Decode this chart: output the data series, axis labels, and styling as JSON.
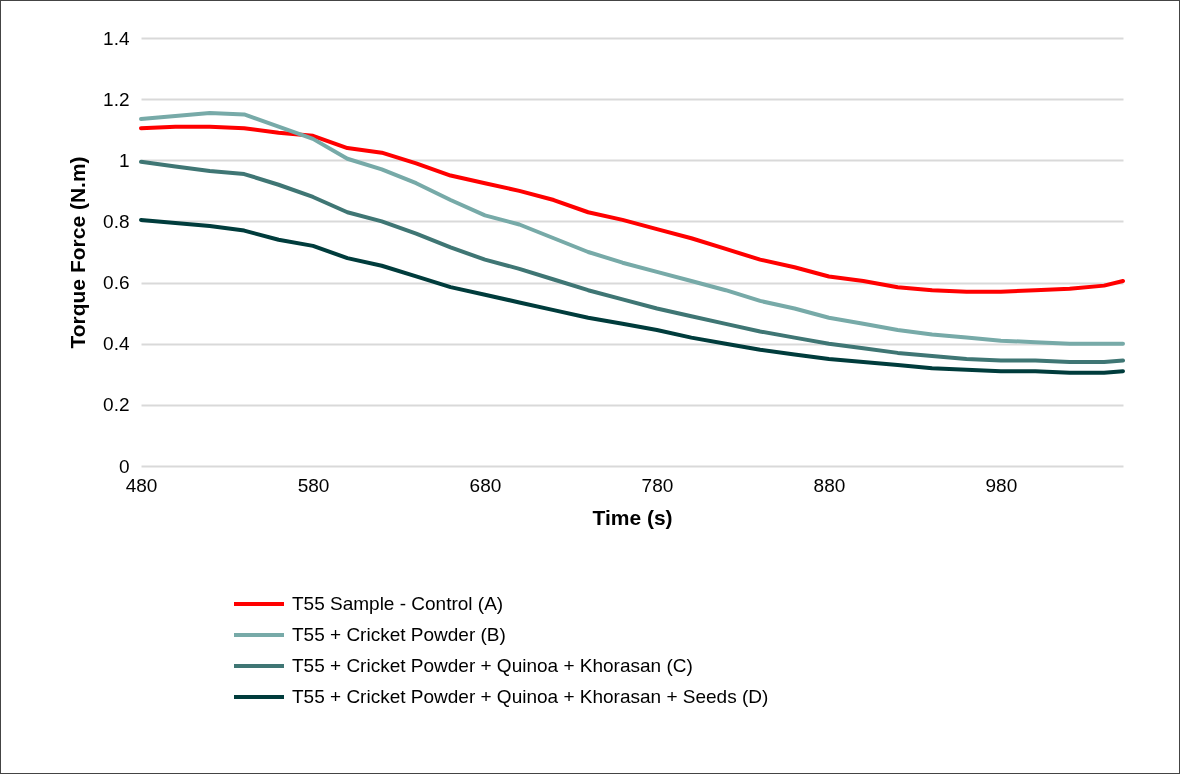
{
  "chart_data": {
    "type": "line",
    "xlabel": "Time (s)",
    "ylabel": "Torque Force (N.m)",
    "x": [
      480,
      500,
      520,
      540,
      560,
      580,
      600,
      620,
      640,
      660,
      680,
      700,
      720,
      740,
      760,
      780,
      800,
      820,
      840,
      860,
      880,
      900,
      920,
      940,
      960,
      980,
      1000,
      1020,
      1040,
      1051
    ],
    "series": [
      {
        "name": "T55 Sample - Control (A)",
        "color": "#ff0000",
        "values": [
          1.105,
          1.11,
          1.11,
          1.105,
          1.09,
          1.08,
          1.04,
          1.025,
          0.99,
          0.95,
          0.925,
          0.9,
          0.87,
          0.83,
          0.805,
          0.775,
          0.745,
          0.71,
          0.675,
          0.65,
          0.62,
          0.605,
          0.585,
          0.575,
          0.57,
          0.57,
          0.575,
          0.58,
          0.59,
          0.605
        ]
      },
      {
        "name": "T55 + Cricket Powder (B)",
        "color": "#77aaa8",
        "values": [
          1.135,
          1.145,
          1.155,
          1.15,
          1.11,
          1.07,
          1.005,
          0.97,
          0.925,
          0.87,
          0.82,
          0.79,
          0.745,
          0.7,
          0.665,
          0.635,
          0.605,
          0.575,
          0.54,
          0.515,
          0.485,
          0.465,
          0.445,
          0.43,
          0.42,
          0.41,
          0.405,
          0.4,
          0.4,
          0.4
        ]
      },
      {
        "name": "T55 + Cricket Powder + Quinoa + Khorasan (C)",
        "color": "#3f7674",
        "values": [
          0.995,
          0.98,
          0.965,
          0.955,
          0.92,
          0.88,
          0.83,
          0.8,
          0.76,
          0.715,
          0.675,
          0.645,
          0.61,
          0.575,
          0.545,
          0.515,
          0.49,
          0.465,
          0.44,
          0.42,
          0.4,
          0.385,
          0.37,
          0.36,
          0.35,
          0.345,
          0.345,
          0.34,
          0.34,
          0.345
        ]
      },
      {
        "name": "T55 + Cricket Powder + Quinoa + Khorasan + Seeds (D)",
        "color": "#003c3c",
        "values": [
          0.805,
          0.795,
          0.785,
          0.77,
          0.74,
          0.72,
          0.68,
          0.655,
          0.62,
          0.585,
          0.56,
          0.535,
          0.51,
          0.485,
          0.465,
          0.445,
          0.42,
          0.4,
          0.38,
          0.365,
          0.35,
          0.34,
          0.33,
          0.32,
          0.315,
          0.31,
          0.31,
          0.305,
          0.305,
          0.31
        ]
      }
    ],
    "xlim": [
      480,
      1051
    ],
    "xticks": [
      480,
      580,
      680,
      780,
      880,
      980
    ],
    "ylim": [
      0,
      1.4
    ],
    "yticks": [
      0,
      0.2,
      0.4,
      0.6,
      0.8,
      1,
      1.2,
      1.4
    ],
    "grid": "y",
    "legend": "bottom",
    "marker": "none",
    "line_style": "solid"
  }
}
